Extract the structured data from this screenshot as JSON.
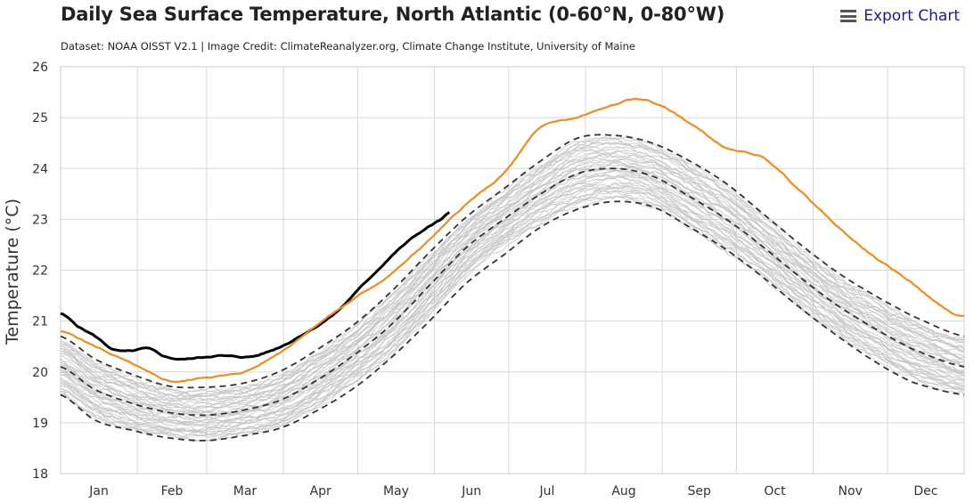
{
  "header": {
    "title": "Daily Sea Surface Temperature, North Atlantic (0-60°N, 0-80°W)",
    "subtitle": "Dataset: NOAA OISST V2.1 | Image Credit: ClimateReanalyzer.org, Climate Change Institute, University of Maine",
    "export_label": "Export Chart",
    "export_icon": "menu-icon"
  },
  "chart_data": {
    "type": "line",
    "title": "Daily Sea Surface Temperature, North Atlantic (0-60°N, 0-80°W)",
    "ylabel": "Temperature (°C)",
    "xlabel": "",
    "ylim": [
      18,
      26
    ],
    "xlim": [
      1,
      366
    ],
    "y_ticks": [
      18,
      19,
      20,
      21,
      22,
      23,
      24,
      25,
      26
    ],
    "x_tick_labels": [
      "Jan",
      "Feb",
      "Mar",
      "Apr",
      "May",
      "Jun",
      "Jul",
      "Aug",
      "Sep",
      "Oct",
      "Nov",
      "Dec"
    ],
    "month_days": [
      31,
      28,
      31,
      30,
      31,
      30,
      31,
      31,
      30,
      31,
      30,
      31
    ],
    "grid": true,
    "legend": "none",
    "series": [
      {
        "style": "current-year",
        "color": "#000000",
        "x": [
          1,
          8,
          15,
          22,
          29,
          36,
          43,
          50,
          57,
          64,
          71,
          78,
          85,
          92,
          99,
          106,
          113,
          120,
          127,
          134,
          141,
          148,
          155,
          158
        ],
        "y": [
          21.15,
          20.9,
          20.7,
          20.45,
          20.4,
          20.45,
          20.3,
          20.25,
          20.28,
          20.32,
          20.3,
          20.3,
          20.4,
          20.55,
          20.75,
          20.95,
          21.2,
          21.55,
          21.9,
          22.25,
          22.55,
          22.8,
          23.0,
          23.12
        ]
      },
      {
        "style": "previous-year",
        "color": "#f28c1c",
        "x": [
          1,
          15,
          30,
          45,
          60,
          75,
          90,
          105,
          120,
          135,
          150,
          165,
          180,
          195,
          210,
          225,
          232,
          240,
          255,
          270,
          285,
          300,
          315,
          330,
          345,
          360,
          366
        ],
        "y": [
          20.8,
          20.5,
          20.15,
          19.82,
          19.9,
          20.0,
          20.4,
          20.95,
          21.45,
          21.95,
          22.6,
          23.3,
          23.9,
          24.8,
          25.0,
          25.25,
          25.35,
          25.3,
          24.9,
          24.4,
          24.2,
          23.55,
          22.85,
          22.25,
          21.75,
          21.2,
          21.1
        ]
      },
      {
        "style": "mean-plus-2sd",
        "color": "#333333",
        "x": [
          1,
          15,
          30,
          45,
          60,
          75,
          90,
          105,
          120,
          135,
          150,
          165,
          180,
          195,
          210,
          225,
          240,
          255,
          270,
          285,
          300,
          315,
          330,
          345,
          366
        ],
        "y": [
          20.7,
          20.25,
          19.95,
          19.72,
          19.7,
          19.78,
          20.02,
          20.45,
          20.95,
          21.6,
          22.35,
          23.05,
          23.6,
          24.15,
          24.6,
          24.65,
          24.5,
          24.15,
          23.7,
          23.1,
          22.5,
          21.95,
          21.5,
          21.1,
          20.7
        ]
      },
      {
        "style": "mean",
        "color": "#333333",
        "x": [
          1,
          15,
          30,
          45,
          60,
          75,
          90,
          105,
          120,
          135,
          150,
          165,
          180,
          195,
          210,
          225,
          240,
          255,
          270,
          285,
          300,
          315,
          330,
          345,
          366
        ],
        "y": [
          20.1,
          19.65,
          19.38,
          19.2,
          19.15,
          19.25,
          19.45,
          19.85,
          20.35,
          20.95,
          21.7,
          22.45,
          23.0,
          23.5,
          23.9,
          24.0,
          23.85,
          23.45,
          23.0,
          22.45,
          21.85,
          21.3,
          20.85,
          20.45,
          20.1
        ]
      },
      {
        "style": "mean-minus-2sd",
        "color": "#333333",
        "x": [
          1,
          15,
          30,
          45,
          60,
          75,
          90,
          105,
          120,
          135,
          150,
          165,
          180,
          195,
          210,
          225,
          240,
          255,
          270,
          285,
          300,
          315,
          330,
          345,
          366
        ],
        "y": [
          19.55,
          19.05,
          18.85,
          18.7,
          18.65,
          18.75,
          18.9,
          19.25,
          19.7,
          20.3,
          21.0,
          21.75,
          22.3,
          22.85,
          23.2,
          23.35,
          23.25,
          22.85,
          22.4,
          21.85,
          21.25,
          20.7,
          20.2,
          19.8,
          19.55
        ]
      },
      {
        "style": "historical-years",
        "color": "#c2c2c2",
        "count": 40,
        "values_note_free": true
      }
    ]
  }
}
